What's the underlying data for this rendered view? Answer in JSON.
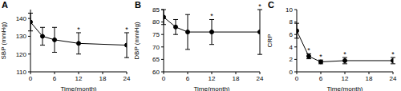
{
  "chart_data": [
    {
      "type": "line",
      "title": "A",
      "x_label": "Time(month)",
      "y_label": "SBP (mmHg)",
      "x": [
        0,
        3,
        6,
        12,
        24
      ],
      "values": [
        138,
        130,
        128,
        126,
        125
      ],
      "errors": [
        5,
        5,
        7,
        6,
        7
      ],
      "annotations": [
        {
          "x": 12,
          "text": "*"
        },
        {
          "x": 24,
          "text": "*"
        }
      ],
      "xlim": [
        0,
        24
      ],
      "xticks": [
        0,
        6,
        12,
        18,
        24
      ],
      "ylim": [
        110,
        145
      ],
      "yticks": [
        110,
        120,
        130,
        140
      ],
      "color": "#000000",
      "marker": "o",
      "grid": false
    },
    {
      "type": "line",
      "title": "B",
      "x_label": "Time(month)",
      "y_label": "DBP (mmHg)",
      "x": [
        0,
        3,
        6,
        12,
        24
      ],
      "values": [
        82,
        78,
        76,
        76,
        76
      ],
      "errors": [
        3,
        3,
        7,
        5,
        9
      ],
      "annotations": [
        {
          "x": 12,
          "text": "*"
        },
        {
          "x": 24,
          "text": "*"
        }
      ],
      "xlim": [
        0,
        24
      ],
      "xticks": [
        0,
        6,
        12,
        18,
        24
      ],
      "ylim": [
        60,
        85
      ],
      "yticks": [
        60,
        65,
        70,
        75,
        80,
        85
      ],
      "color": "#000000",
      "marker": "o",
      "grid": false
    },
    {
      "type": "line",
      "title": "C",
      "x_label": "Time(month)",
      "y_label": "CRP",
      "x": [
        0,
        3,
        6,
        12,
        24
      ],
      "values": [
        6.6,
        2.5,
        1.6,
        1.8,
        1.8
      ],
      "errors": [
        1.2,
        0.4,
        0.3,
        0.5,
        0.5
      ],
      "annotations": [
        {
          "x": 3,
          "text": "*"
        },
        {
          "x": 6,
          "text": "*"
        },
        {
          "x": 12,
          "text": "*"
        },
        {
          "x": 24,
          "text": "*"
        }
      ],
      "xlim": [
        0,
        24
      ],
      "xticks": [
        0,
        6,
        12,
        18,
        24
      ],
      "ylim": [
        0,
        10
      ],
      "yticks": [
        0,
        2,
        4,
        6,
        8,
        10
      ],
      "color": "#000000",
      "marker": "o",
      "grid": false
    }
  ]
}
